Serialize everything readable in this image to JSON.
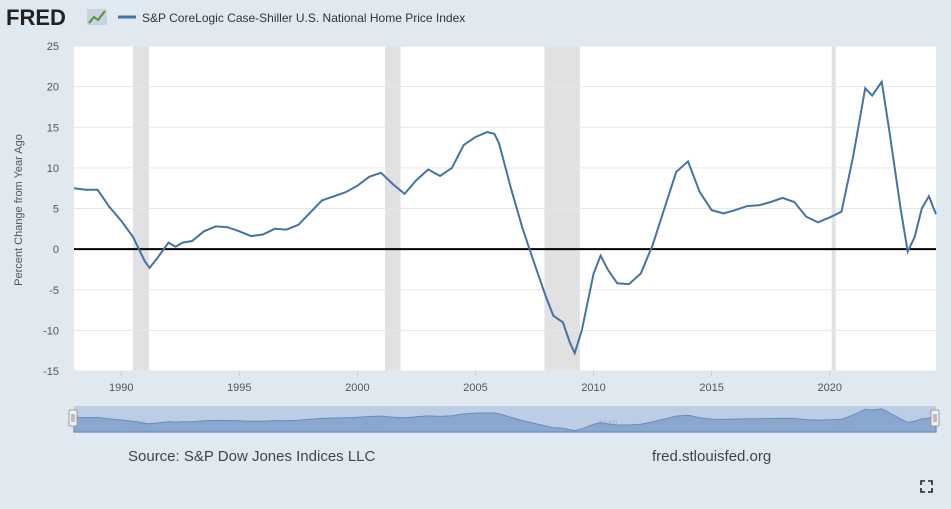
{
  "brand": {
    "logo_text": "FRED"
  },
  "legend": {
    "series_label": "S&P CoreLogic Case-Shiller U.S. National Home Price Index",
    "color": "#4572a7"
  },
  "footer": {
    "source": "Source: S&P Dow Jones Indices LLC",
    "site": "fred.stlouisfed.org"
  },
  "chart_data": {
    "type": "line",
    "xlabel": "",
    "ylabel": "Percent Change from Year Ago",
    "xlim": [
      1988.0,
      2024.5
    ],
    "ylim": [
      -15,
      25
    ],
    "yticks": [
      -15,
      -10,
      -5,
      0,
      5,
      10,
      15,
      20,
      25
    ],
    "xticks": [
      1990,
      1995,
      2000,
      2005,
      2010,
      2015,
      2020
    ],
    "zero_line": true,
    "grid": "horizontal",
    "recessions": [
      [
        1990.5,
        1991.17
      ],
      [
        2001.17,
        2001.83
      ],
      [
        2007.92,
        2009.42
      ],
      [
        2020.08,
        2020.25
      ]
    ],
    "navigator_labels": [
      "1990",
      "2000",
      "2010",
      "2020"
    ],
    "series": [
      {
        "name": "S&P CoreLogic Case-Shiller U.S. National Home Price Index",
        "color": "#4572a7",
        "points": [
          [
            1988.0,
            7.5
          ],
          [
            1988.5,
            7.3
          ],
          [
            1989.0,
            7.3
          ],
          [
            1989.5,
            5.2
          ],
          [
            1990.0,
            3.5
          ],
          [
            1990.5,
            1.5
          ],
          [
            1991.0,
            -1.5
          ],
          [
            1991.2,
            -2.3
          ],
          [
            1991.5,
            -1.2
          ],
          [
            1992.0,
            0.8
          ],
          [
            1992.3,
            0.3
          ],
          [
            1992.6,
            0.8
          ],
          [
            1993.0,
            1.0
          ],
          [
            1993.5,
            2.2
          ],
          [
            1994.0,
            2.8
          ],
          [
            1994.5,
            2.7
          ],
          [
            1995.0,
            2.2
          ],
          [
            1995.5,
            1.6
          ],
          [
            1996.0,
            1.8
          ],
          [
            1996.5,
            2.5
          ],
          [
            1997.0,
            2.4
          ],
          [
            1997.5,
            3.0
          ],
          [
            1998.0,
            4.5
          ],
          [
            1998.5,
            6.0
          ],
          [
            1999.0,
            6.5
          ],
          [
            1999.5,
            7.0
          ],
          [
            2000.0,
            7.8
          ],
          [
            2000.5,
            8.9
          ],
          [
            2001.0,
            9.4
          ],
          [
            2001.5,
            8.0
          ],
          [
            2002.0,
            6.8
          ],
          [
            2002.5,
            8.5
          ],
          [
            2003.0,
            9.8
          ],
          [
            2003.5,
            9.0
          ],
          [
            2004.0,
            10.0
          ],
          [
            2004.5,
            12.8
          ],
          [
            2005.0,
            13.8
          ],
          [
            2005.5,
            14.4
          ],
          [
            2005.8,
            14.2
          ],
          [
            2006.0,
            13.0
          ],
          [
            2006.5,
            7.5
          ],
          [
            2007.0,
            2.5
          ],
          [
            2007.5,
            -1.8
          ],
          [
            2008.0,
            -6.0
          ],
          [
            2008.3,
            -8.2
          ],
          [
            2008.7,
            -9.0
          ],
          [
            2009.0,
            -11.5
          ],
          [
            2009.2,
            -12.8
          ],
          [
            2009.5,
            -10.0
          ],
          [
            2010.0,
            -3.0
          ],
          [
            2010.3,
            -0.8
          ],
          [
            2010.6,
            -2.5
          ],
          [
            2011.0,
            -4.2
          ],
          [
            2011.5,
            -4.3
          ],
          [
            2012.0,
            -3.0
          ],
          [
            2012.5,
            0.5
          ],
          [
            2013.0,
            5.0
          ],
          [
            2013.5,
            9.5
          ],
          [
            2014.0,
            10.8
          ],
          [
            2014.5,
            7.0
          ],
          [
            2015.0,
            4.8
          ],
          [
            2015.5,
            4.4
          ],
          [
            2016.0,
            4.8
          ],
          [
            2016.5,
            5.3
          ],
          [
            2017.0,
            5.4
          ],
          [
            2017.5,
            5.8
          ],
          [
            2018.0,
            6.3
          ],
          [
            2018.5,
            5.8
          ],
          [
            2019.0,
            4.0
          ],
          [
            2019.5,
            3.3
          ],
          [
            2020.0,
            3.9
          ],
          [
            2020.5,
            4.6
          ],
          [
            2021.0,
            11.5
          ],
          [
            2021.5,
            19.8
          ],
          [
            2021.8,
            18.9
          ],
          [
            2022.2,
            20.6
          ],
          [
            2022.5,
            15.0
          ],
          [
            2023.0,
            5.0
          ],
          [
            2023.3,
            -0.3
          ],
          [
            2023.6,
            1.5
          ],
          [
            2023.9,
            5.0
          ],
          [
            2024.2,
            6.5
          ],
          [
            2024.5,
            4.3
          ]
        ]
      }
    ]
  }
}
